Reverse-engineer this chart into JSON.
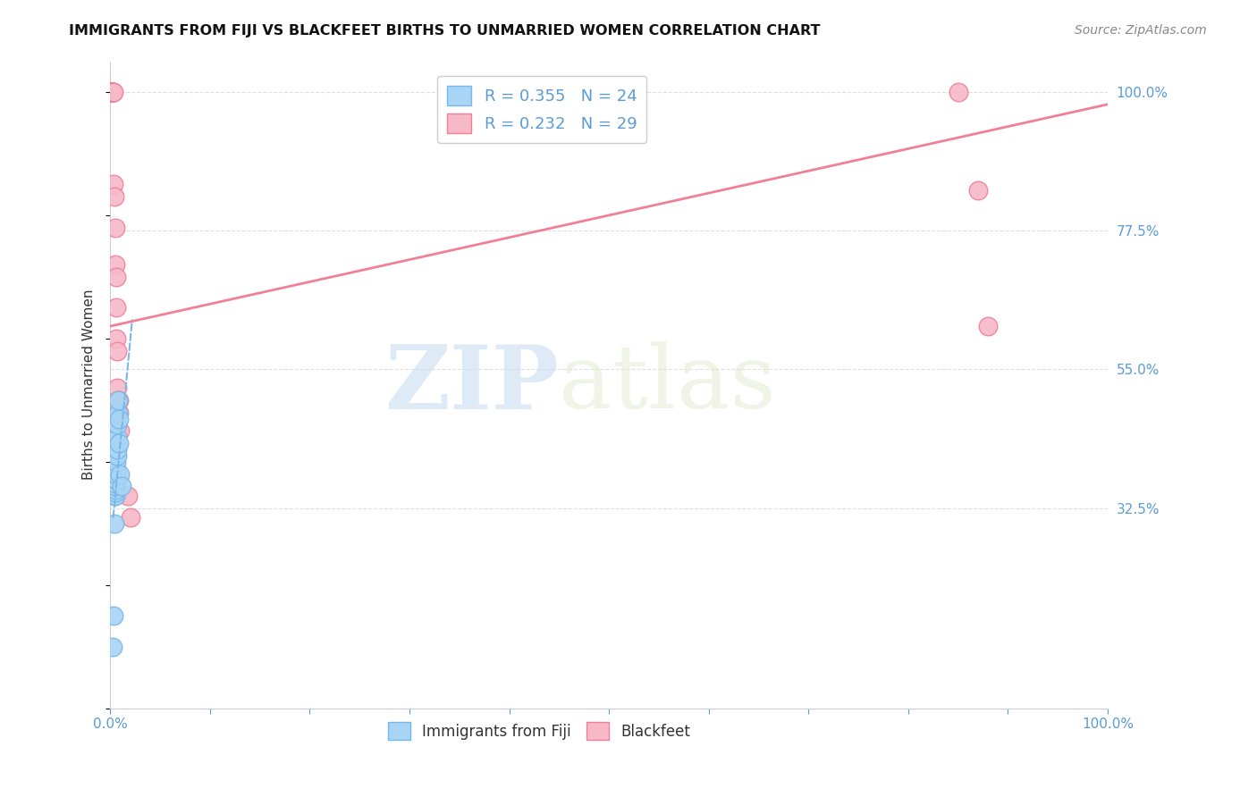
{
  "title": "IMMIGRANTS FROM FIJI VS BLACKFEET BIRTHS TO UNMARRIED WOMEN CORRELATION CHART",
  "source": "Source: ZipAtlas.com",
  "ylabel": "Births to Unmarried Women",
  "fiji_color": "#a8d4f5",
  "fiji_edge": "#7ab8e8",
  "blackfeet_color": "#f7b8c8",
  "blackfeet_edge": "#f08098",
  "fiji_R": 0.355,
  "fiji_N": 24,
  "blackfeet_R": 0.232,
  "blackfeet_N": 29,
  "fiji_scatter_x": [
    0.002,
    0.003,
    0.004,
    0.004,
    0.005,
    0.005,
    0.005,
    0.005,
    0.005,
    0.006,
    0.006,
    0.006,
    0.006,
    0.006,
    0.007,
    0.007,
    0.007,
    0.007,
    0.008,
    0.008,
    0.009,
    0.009,
    0.01,
    0.011
  ],
  "fiji_scatter_y": [
    0.1,
    0.15,
    0.3,
    0.345,
    0.345,
    0.35,
    0.355,
    0.36,
    0.365,
    0.37,
    0.37,
    0.38,
    0.39,
    0.4,
    0.41,
    0.42,
    0.44,
    0.46,
    0.48,
    0.5,
    0.43,
    0.47,
    0.38,
    0.36
  ],
  "blackfeet_scatter_x": [
    0.001,
    0.001,
    0.001,
    0.001,
    0.002,
    0.002,
    0.002,
    0.002,
    0.002,
    0.002,
    0.003,
    0.003,
    0.004,
    0.005,
    0.005,
    0.006,
    0.006,
    0.006,
    0.007,
    0.007,
    0.008,
    0.009,
    0.009,
    0.01,
    0.018,
    0.02,
    0.85,
    0.87,
    0.88
  ],
  "blackfeet_scatter_y": [
    1.0,
    1.0,
    1.0,
    1.0,
    1.0,
    1.0,
    1.0,
    1.0,
    1.0,
    1.0,
    1.0,
    0.85,
    0.83,
    0.78,
    0.72,
    0.7,
    0.65,
    0.6,
    0.58,
    0.52,
    0.5,
    0.5,
    0.48,
    0.45,
    0.345,
    0.31,
    1.0,
    0.84,
    0.62
  ],
  "fiji_line_x": [
    0.003,
    0.022
  ],
  "fiji_line_y": [
    0.31,
    0.63
  ],
  "blackfeet_line_x": [
    0.0,
    1.0
  ],
  "blackfeet_line_y": [
    0.62,
    0.98
  ],
  "watermark_zip": "ZIP",
  "watermark_atlas": "atlas",
  "background_color": "#ffffff",
  "grid_color": "#d8d8d8",
  "xlim": [
    0.0,
    1.0
  ],
  "ylim": [
    0.0,
    1.05
  ],
  "ytick_positions": [
    0.325,
    0.55,
    0.775,
    1.0
  ],
  "yticklabels": [
    "32.5%",
    "55.0%",
    "77.5%",
    "100.0%"
  ]
}
